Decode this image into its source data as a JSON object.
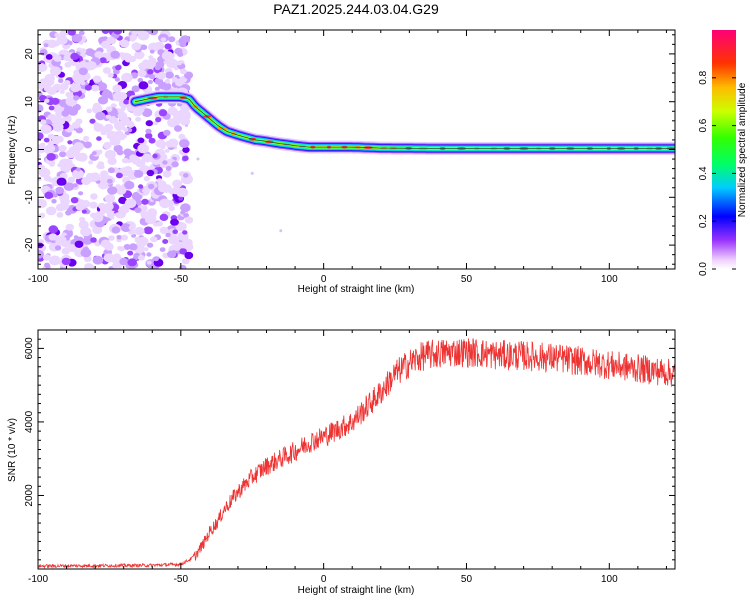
{
  "title": "PAZ1.2025.244.03.04.G29",
  "chart_data": [
    {
      "type": "heatmap",
      "name": "spectrogram",
      "xlabel": "Height of straight line (km)",
      "ylabel": "Frequency (Hz)",
      "xlim": [
        -100,
        123
      ],
      "ylim": [
        -25,
        25
      ],
      "xticks": [
        -100,
        -50,
        0,
        50,
        100
      ],
      "yticks": [
        20,
        10,
        0,
        -10,
        -20
      ],
      "colorbar": {
        "label": "Normalized spectral amplitude",
        "range": [
          0,
          1
        ],
        "ticks": [
          "0.0",
          "0.2",
          "0.4",
          "0.6",
          "0.8"
        ]
      },
      "ridge": {
        "x": [
          -66,
          -62,
          -58,
          -54,
          -50,
          -47,
          -45,
          -42,
          -40,
          -37,
          -34,
          -30,
          -27,
          -24,
          -21,
          -18,
          -15,
          -12,
          -10,
          -5,
          0,
          10,
          20,
          40,
          60,
          80,
          100,
          123
        ],
        "y": [
          10,
          10.5,
          11,
          11,
          11,
          10.5,
          9,
          7.5,
          6.5,
          5,
          3.8,
          3,
          2.5,
          2,
          1.8,
          1.5,
          1.2,
          1,
          0.8,
          0.5,
          0.5,
          0.5,
          0.3,
          0.2,
          0.2,
          0.2,
          0.2,
          0.2
        ]
      },
      "noise_region_x": [
        -100,
        -47
      ]
    },
    {
      "type": "line",
      "name": "snr",
      "xlabel": "Height of straight line (km)",
      "ylabel": "SNR (10 * v/v)",
      "xlim": [
        -100,
        123
      ],
      "ylim": [
        0,
        6500
      ],
      "xticks": [
        -100,
        -50,
        0,
        50,
        100
      ],
      "yticks": [
        2000,
        4000,
        6000
      ],
      "color": "#ee3333",
      "series": [
        {
          "name": "SNR",
          "x": [
            -100,
            -80,
            -60,
            -50,
            -47,
            -45,
            -42,
            -40,
            -37,
            -35,
            -30,
            -25,
            -20,
            -15,
            -10,
            -5,
            0,
            5,
            10,
            15,
            20,
            25,
            30,
            35,
            40,
            45,
            50,
            55,
            60,
            70,
            80,
            90,
            100,
            110,
            120,
            123
          ],
          "values": [
            80,
            90,
            100,
            130,
            250,
            350,
            700,
            1000,
            1300,
            1600,
            2100,
            2500,
            2800,
            3000,
            3200,
            3450,
            3600,
            3800,
            4000,
            4400,
            4800,
            5300,
            5600,
            5800,
            5850,
            5900,
            5900,
            5870,
            5820,
            5800,
            5750,
            5650,
            5550,
            5450,
            5350,
            5300
          ]
        }
      ]
    }
  ]
}
